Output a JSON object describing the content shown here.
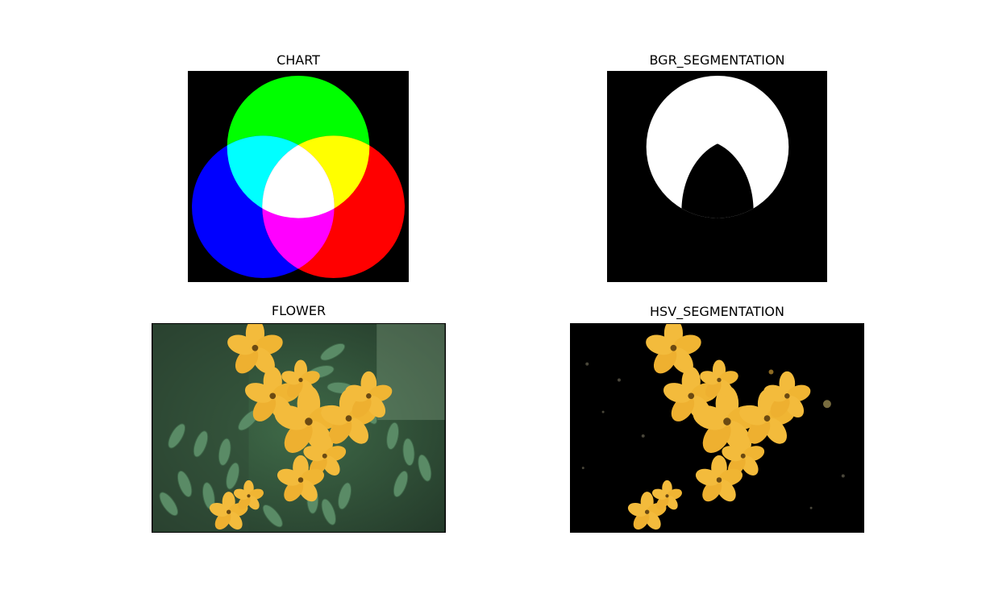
{
  "figure": {
    "panels": [
      {
        "title": "CHART"
      },
      {
        "title": "BGR_SEGMENTATION"
      },
      {
        "title": "FLOWER"
      },
      {
        "title": "HSV_SEGMENTATION"
      }
    ]
  },
  "colors": {
    "background": "#000000",
    "green": "#00ff00",
    "red": "#ff0000",
    "blue": "#0000ff",
    "cyan": "#00ffff",
    "yellow": "#ffff00",
    "magenta": "#ff00ff",
    "white": "#ffffff",
    "petal": "#f3bb3c",
    "petal_dark": "#dd9a1f",
    "leaf": "#4f7c5a",
    "leaf_light": "#6e9a79"
  }
}
